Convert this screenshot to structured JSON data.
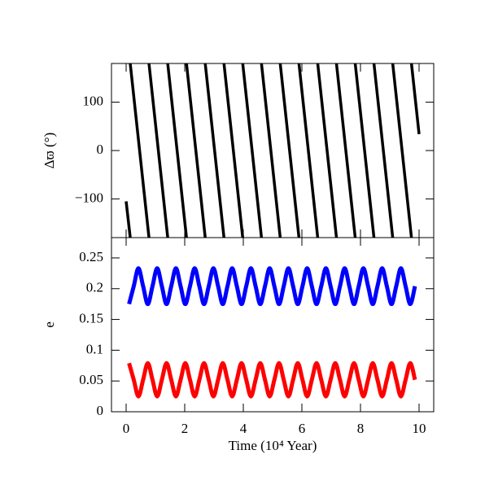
{
  "chart_data": [
    {
      "type": "line",
      "ylabel": "Δϖ (°)",
      "xlim": [
        -0.5,
        10.5
      ],
      "xticks": [
        0,
        2,
        4,
        6,
        8,
        10
      ],
      "ylim": [
        -180,
        180
      ],
      "yticks": [
        {
          "value": -100,
          "label": "−100"
        },
        0,
        100
      ],
      "x": [
        0,
        0.14,
        0.14,
        0.14,
        0.78,
        0.78,
        0.78,
        1.42,
        1.42,
        1.42,
        2.06,
        2.06,
        2.06,
        2.7,
        2.7,
        2.7,
        3.34,
        3.34,
        3.34,
        3.98,
        3.98,
        3.98,
        4.62,
        4.62,
        4.62,
        5.26,
        5.26,
        5.26,
        5.9,
        5.9,
        5.9,
        6.54,
        6.54,
        6.54,
        7.18,
        7.18,
        7.18,
        7.82,
        7.82,
        7.82,
        8.46,
        8.46,
        8.46,
        9.1,
        9.1,
        9.1,
        9.74,
        9.74,
        9.74,
        10
      ],
      "series": [
        {
          "color": "#000000",
          "values": [
            -105,
            -180,
            null,
            180,
            -180,
            null,
            180,
            -180,
            null,
            180,
            -180,
            null,
            180,
            -180,
            null,
            180,
            -180,
            null,
            180,
            -180,
            null,
            180,
            -180,
            null,
            180,
            -180,
            null,
            180,
            -180,
            null,
            180,
            -180,
            null,
            180,
            -180,
            null,
            180,
            -180,
            null,
            180,
            -180,
            null,
            180,
            -180,
            null,
            180,
            -180,
            null,
            180,
            34
          ]
        }
      ]
    },
    {
      "type": "line",
      "xlabel": "Time (10⁴ Year)",
      "ylabel": "e",
      "xlim": [
        -0.5,
        10.5
      ],
      "xticks": [
        0,
        2,
        4,
        6,
        8,
        10
      ],
      "ylim": [
        0,
        0.283
      ],
      "yticks": [
        0,
        0.05,
        0.1,
        0.15,
        0.2,
        0.25
      ],
      "x": [
        0.1,
        0.26,
        0.42,
        0.58,
        0.74,
        0.9,
        1.06,
        1.22,
        1.38,
        1.54,
        1.7,
        1.86,
        2.02,
        2.18,
        2.34,
        2.5,
        2.66,
        2.82,
        2.98,
        3.14,
        3.3,
        3.46,
        3.62,
        3.78,
        3.94,
        4.1,
        4.26,
        4.42,
        4.58,
        4.74,
        4.9,
        5.06,
        5.22,
        5.38,
        5.54,
        5.7,
        5.86,
        6.02,
        6.18,
        6.34,
        6.5,
        6.66,
        6.82,
        6.98,
        7.14,
        7.3,
        7.46,
        7.62,
        7.78,
        7.94,
        8.1,
        8.26,
        8.42,
        8.58,
        8.74,
        8.9,
        9.06,
        9.22,
        9.38,
        9.54,
        9.7,
        9.86
      ],
      "series": [
        {
          "color": "#0000ff",
          "values": [
            0.175,
            0.204,
            0.233,
            0.204,
            0.175,
            0.204,
            0.233,
            0.204,
            0.175,
            0.204,
            0.233,
            0.204,
            0.175,
            0.204,
            0.233,
            0.204,
            0.175,
            0.204,
            0.233,
            0.204,
            0.175,
            0.204,
            0.233,
            0.204,
            0.175,
            0.204,
            0.233,
            0.204,
            0.175,
            0.204,
            0.233,
            0.204,
            0.175,
            0.204,
            0.233,
            0.204,
            0.175,
            0.204,
            0.233,
            0.204,
            0.175,
            0.204,
            0.233,
            0.204,
            0.175,
            0.204,
            0.233,
            0.204,
            0.175,
            0.204,
            0.233,
            0.204,
            0.175,
            0.204,
            0.233,
            0.204,
            0.175,
            0.204,
            0.233,
            0.204,
            0.175,
            0.204
          ]
        },
        {
          "color": "#ff0000",
          "values": [
            0.079,
            0.052,
            0.025,
            0.052,
            0.079,
            0.052,
            0.025,
            0.052,
            0.079,
            0.052,
            0.025,
            0.052,
            0.079,
            0.052,
            0.025,
            0.052,
            0.079,
            0.052,
            0.025,
            0.052,
            0.079,
            0.052,
            0.025,
            0.052,
            0.079,
            0.052,
            0.025,
            0.052,
            0.079,
            0.052,
            0.025,
            0.052,
            0.079,
            0.052,
            0.025,
            0.052,
            0.079,
            0.052,
            0.025,
            0.052,
            0.079,
            0.052,
            0.025,
            0.052,
            0.079,
            0.052,
            0.025,
            0.052,
            0.079,
            0.052,
            0.025,
            0.052,
            0.079,
            0.052,
            0.025,
            0.052,
            0.079,
            0.052,
            0.025,
            0.052,
            0.079,
            0.052
          ]
        }
      ]
    }
  ]
}
